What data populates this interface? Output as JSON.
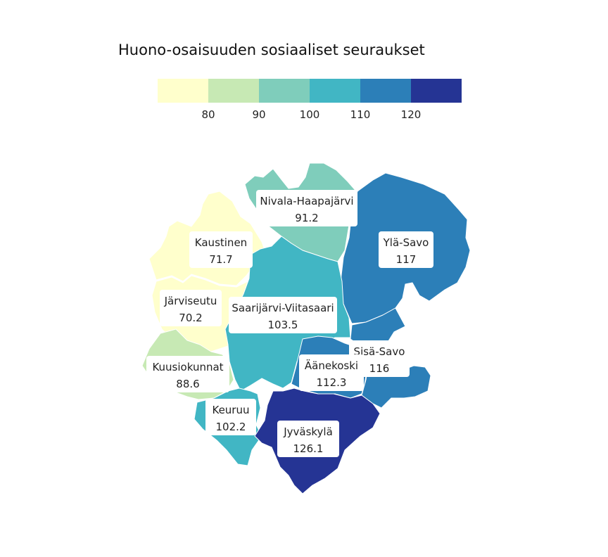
{
  "chart_data": {
    "type": "choropleth",
    "title": "Huono-osaisuuden sosiaaliset seuraukset",
    "legend": {
      "placement": "top",
      "bins": [
        {
          "from": null,
          "to": 80,
          "color": "#ffffcc"
        },
        {
          "from": 80,
          "to": 90,
          "color": "#c7e9b4"
        },
        {
          "from": 90,
          "to": 100,
          "color": "#7fcdbb"
        },
        {
          "from": 100,
          "to": 110,
          "color": "#41b6c4"
        },
        {
          "from": 110,
          "to": 120,
          "color": "#2c7fb8"
        },
        {
          "from": 120,
          "to": null,
          "color": "#253494"
        }
      ],
      "ticks": [
        "80",
        "90",
        "100",
        "110",
        "120"
      ]
    },
    "regions": [
      {
        "id": "nivala-haapajarvi",
        "name": "Nivala-Haapajärvi",
        "value": 91.2,
        "value_label": "91.2"
      },
      {
        "id": "kaustinen",
        "name": "Kaustinen",
        "value": 71.7,
        "value_label": "71.7"
      },
      {
        "id": "yla-savo",
        "name": "Ylä-Savo",
        "value": 117,
        "value_label": "117"
      },
      {
        "id": "jarviseutu",
        "name": "Järviseutu",
        "value": 70.2,
        "value_label": "70.2"
      },
      {
        "id": "saarijarvi-viitasaari",
        "name": "Saarijärvi-Viitasaari",
        "value": 103.5,
        "value_label": "103.5"
      },
      {
        "id": "sisa-savo",
        "name": "Sisä-Savo",
        "value": 116,
        "value_label": "116"
      },
      {
        "id": "aanekoski",
        "name": "Äänekoski",
        "value": 112.3,
        "value_label": "112.3"
      },
      {
        "id": "kuusiokunnat",
        "name": "Kuusiokunnat",
        "value": 88.6,
        "value_label": "88.6"
      },
      {
        "id": "keuruu",
        "name": "Keuruu",
        "value": 102.2,
        "value_label": "102.2"
      },
      {
        "id": "jyvaskyla",
        "name": "Jyväskylä",
        "value": 126.1,
        "value_label": "126.1"
      }
    ]
  }
}
